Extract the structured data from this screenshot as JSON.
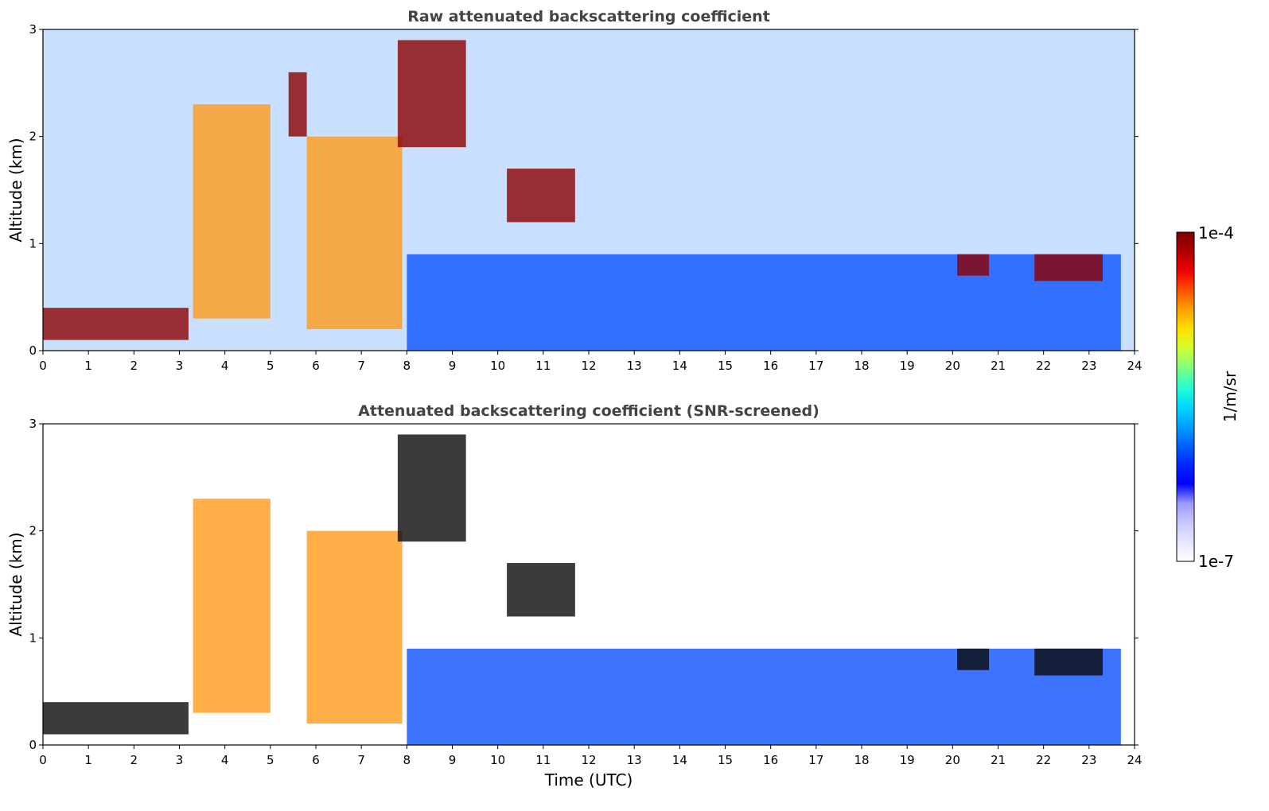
{
  "chart_data": [
    {
      "type": "heatmap",
      "title": "Raw attenuated backscattering coefficient",
      "xlabel": "",
      "ylabel": "Altitude (km)",
      "xlim": [
        0,
        24
      ],
      "ylim": [
        0,
        3
      ],
      "xticks": [
        "0",
        "1",
        "2",
        "3",
        "4",
        "5",
        "6",
        "7",
        "8",
        "9",
        "10",
        "11",
        "12",
        "13",
        "14",
        "15",
        "16",
        "17",
        "18",
        "19",
        "20",
        "21",
        "22",
        "23",
        "24"
      ],
      "yticks": [
        "0",
        "1",
        "2",
        "3"
      ],
      "grid": false,
      "features": [
        {
          "name": "surface aerosol layer",
          "t_start": 0,
          "t_end": 3.2,
          "alt_bottom": 0.1,
          "alt_top": 0.4,
          "level": "max"
        },
        {
          "name": "aerosol plume",
          "t_start": 3.3,
          "t_end": 5.0,
          "alt_bottom": 0.3,
          "alt_top": 2.3,
          "level": "high"
        },
        {
          "name": "aerosol plume",
          "t_start": 5.8,
          "t_end": 7.9,
          "alt_bottom": 0.2,
          "alt_top": 2.0,
          "level": "high"
        },
        {
          "name": "rising cloud layer",
          "t_start": 7.8,
          "t_end": 9.3,
          "alt_bottom": 1.9,
          "alt_top": 2.9,
          "level": "max"
        },
        {
          "name": "cloud streak",
          "t_start": 5.4,
          "t_end": 5.8,
          "alt_bottom": 2.0,
          "alt_top": 2.6,
          "level": "max"
        },
        {
          "name": "cloud fragments",
          "t_start": 10.2,
          "t_end": 11.7,
          "alt_bottom": 1.2,
          "alt_top": 1.7,
          "level": "max"
        },
        {
          "name": "boundary layer",
          "t_start": 8.0,
          "t_end": 23.7,
          "alt_bottom": 0,
          "alt_top": 0.9,
          "level": "low"
        },
        {
          "name": "low cloud",
          "t_start": 20.1,
          "t_end": 20.8,
          "alt_bottom": 0.7,
          "alt_top": 0.9,
          "level": "max"
        },
        {
          "name": "low cloud",
          "t_start": 21.8,
          "t_end": 23.3,
          "alt_bottom": 0.65,
          "alt_top": 0.9,
          "level": "max"
        }
      ]
    },
    {
      "type": "heatmap",
      "title": "Attenuated backscattering coefficient (SNR-screened)",
      "xlabel": "Time (UTC)",
      "ylabel": "Altitude (km)",
      "xlim": [
        0,
        24
      ],
      "ylim": [
        0,
        3
      ],
      "xticks": [
        "0",
        "1",
        "2",
        "3",
        "4",
        "5",
        "6",
        "7",
        "8",
        "9",
        "10",
        "11",
        "12",
        "13",
        "14",
        "15",
        "16",
        "17",
        "18",
        "19",
        "20",
        "21",
        "22",
        "23",
        "24"
      ],
      "yticks": [
        "0",
        "1",
        "2",
        "3"
      ],
      "grid": false,
      "features": [
        {
          "name": "surface aerosol layer",
          "t_start": 0,
          "t_end": 3.2,
          "alt_bottom": 0.1,
          "alt_top": 0.4,
          "level": "saturated"
        },
        {
          "name": "aerosol plume",
          "t_start": 3.3,
          "t_end": 5.0,
          "alt_bottom": 0.3,
          "alt_top": 2.3,
          "level": "high"
        },
        {
          "name": "aerosol plume",
          "t_start": 5.8,
          "t_end": 7.9,
          "alt_bottom": 0.2,
          "alt_top": 2.0,
          "level": "high"
        },
        {
          "name": "rising cloud layer",
          "t_start": 7.8,
          "t_end": 9.3,
          "alt_bottom": 1.9,
          "alt_top": 2.9,
          "level": "saturated"
        },
        {
          "name": "cloud fragments",
          "t_start": 10.2,
          "t_end": 11.7,
          "alt_bottom": 1.2,
          "alt_top": 1.7,
          "level": "saturated"
        },
        {
          "name": "boundary layer",
          "t_start": 8.0,
          "t_end": 23.7,
          "alt_bottom": 0,
          "alt_top": 0.9,
          "level": "low"
        },
        {
          "name": "low cloud",
          "t_start": 20.1,
          "t_end": 20.8,
          "alt_bottom": 0.7,
          "alt_top": 0.9,
          "level": "saturated"
        },
        {
          "name": "low cloud",
          "t_start": 21.8,
          "t_end": 23.3,
          "alt_bottom": 0.65,
          "alt_top": 0.9,
          "level": "saturated"
        }
      ]
    }
  ],
  "colorbar": {
    "label": "1/m/sr",
    "max_label": "1e-4",
    "min_label": "1e-7",
    "scale": "log",
    "range": [
      1e-07,
      0.0001
    ],
    "colors": [
      "#ffffff",
      "#e6e6ff",
      "#c8c8ff",
      "#9a9aff",
      "#0000ff",
      "#0028ff",
      "#0064ff",
      "#00a0ff",
      "#00d8ff",
      "#28ffd0",
      "#80ff80",
      "#d0ff30",
      "#ffe000",
      "#ffa000",
      "#ff5000",
      "#f00000",
      "#b00000",
      "#800000"
    ],
    "level_colors": {
      "low": "#1a5cff",
      "high": "#ff9a1a",
      "max": "#8c0000",
      "saturated": "#0a0a0a"
    }
  }
}
